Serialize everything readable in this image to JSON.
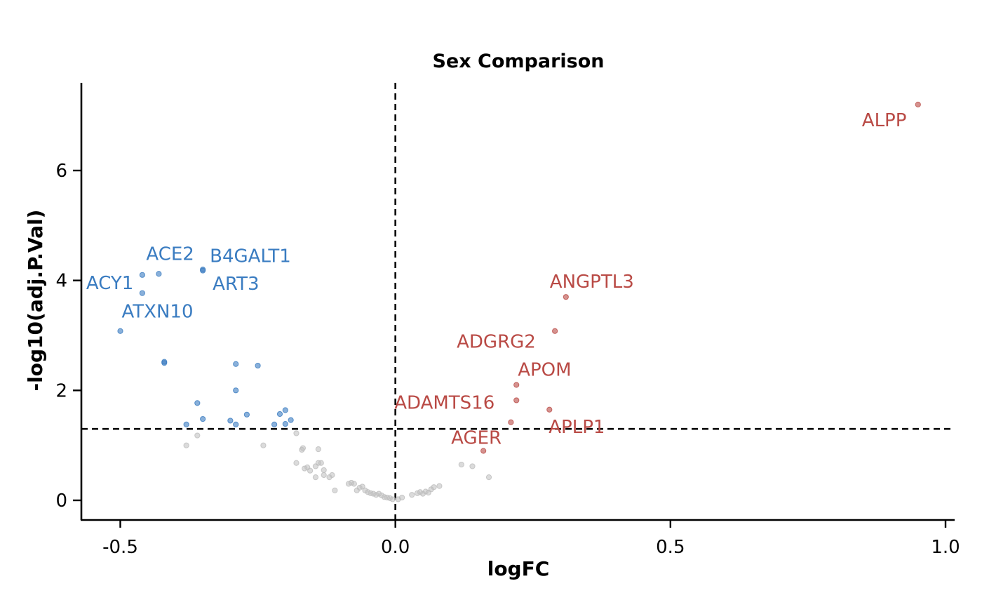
{
  "chart_data": {
    "type": "scatter",
    "title": "Sex Comparison",
    "xlabel": "logFC",
    "ylabel": "-log10(adj.P.Val)",
    "xlim": [
      -0.57,
      1.02
    ],
    "ylim": [
      -0.35,
      7.6
    ],
    "x_ticks": [
      "-0.5",
      "0.0",
      "0.5",
      "1.0"
    ],
    "y_ticks": [
      "0",
      "2",
      "4",
      "6"
    ],
    "thresholds": {
      "logfc_vline": 0.0,
      "pval_hline": 1.3
    },
    "colors": {
      "up": "#b94a45",
      "down": "#3a7cc1",
      "ns": "#bdbdbd"
    },
    "series": [
      {
        "group": "up",
        "points": [
          [
            0.95,
            7.2
          ],
          [
            0.31,
            3.7
          ],
          [
            0.29,
            3.08
          ],
          [
            0.22,
            2.1
          ],
          [
            0.22,
            1.82
          ],
          [
            0.28,
            1.65
          ],
          [
            0.21,
            1.42
          ],
          [
            0.16,
            0.9
          ]
        ]
      },
      {
        "group": "down",
        "points": [
          [
            -0.35,
            4.2
          ],
          [
            -0.35,
            4.18
          ],
          [
            -0.43,
            4.12
          ],
          [
            -0.46,
            4.1
          ],
          [
            -0.46,
            3.77
          ],
          [
            -0.5,
            3.08
          ],
          [
            -0.42,
            2.5
          ],
          [
            -0.42,
            2.52
          ],
          [
            -0.29,
            2.48
          ],
          [
            -0.25,
            2.45
          ],
          [
            -0.29,
            2.0
          ],
          [
            -0.36,
            1.77
          ],
          [
            -0.38,
            1.38
          ],
          [
            -0.35,
            1.48
          ],
          [
            -0.3,
            1.45
          ],
          [
            -0.29,
            1.38
          ],
          [
            -0.27,
            1.56
          ],
          [
            -0.22,
            1.38
          ],
          [
            -0.21,
            1.57
          ],
          [
            -0.2,
            1.64
          ],
          [
            -0.2,
            1.39
          ],
          [
            -0.19,
            1.46
          ]
        ]
      },
      {
        "group": "ns",
        "points": [
          [
            -0.38,
            1.0
          ],
          [
            -0.36,
            1.18
          ],
          [
            -0.24,
            1.0
          ],
          [
            -0.18,
            1.22
          ],
          [
            -0.17,
            0.92
          ],
          [
            -0.168,
            0.95
          ],
          [
            -0.14,
            0.93
          ],
          [
            -0.18,
            0.68
          ],
          [
            -0.165,
            0.58
          ],
          [
            -0.16,
            0.6
          ],
          [
            -0.155,
            0.54
          ],
          [
            -0.145,
            0.62
          ],
          [
            -0.14,
            0.68
          ],
          [
            -0.135,
            0.68
          ],
          [
            -0.13,
            0.55
          ],
          [
            -0.13,
            0.46
          ],
          [
            -0.145,
            0.42
          ],
          [
            -0.12,
            0.42
          ],
          [
            -0.115,
            0.46
          ],
          [
            -0.11,
            0.18
          ],
          [
            -0.085,
            0.3
          ],
          [
            -0.08,
            0.32
          ],
          [
            -0.075,
            0.3
          ],
          [
            -0.07,
            0.18
          ],
          [
            -0.065,
            0.23
          ],
          [
            -0.06,
            0.25
          ],
          [
            -0.055,
            0.18
          ],
          [
            -0.05,
            0.15
          ],
          [
            -0.045,
            0.13
          ],
          [
            -0.04,
            0.12
          ],
          [
            -0.035,
            0.1
          ],
          [
            -0.03,
            0.12
          ],
          [
            -0.025,
            0.09
          ],
          [
            -0.02,
            0.06
          ],
          [
            -0.015,
            0.05
          ],
          [
            -0.01,
            0.04
          ],
          [
            -0.005,
            0.02
          ],
          [
            0.005,
            0.02
          ],
          [
            0.012,
            0.05
          ],
          [
            0.03,
            0.1
          ],
          [
            0.04,
            0.13
          ],
          [
            0.045,
            0.15
          ],
          [
            0.05,
            0.12
          ],
          [
            0.055,
            0.16
          ],
          [
            0.06,
            0.14
          ],
          [
            0.065,
            0.2
          ],
          [
            0.07,
            0.24
          ],
          [
            0.08,
            0.26
          ],
          [
            0.12,
            0.65
          ],
          [
            0.14,
            0.62
          ],
          [
            0.17,
            0.42
          ]
        ]
      }
    ],
    "labels": [
      {
        "text": "ALPP",
        "group": "up",
        "x": 0.95,
        "y": 7.2,
        "dx": -80,
        "dy": 31
      },
      {
        "text": "ANGPTL3",
        "group": "up",
        "x": 0.31,
        "y": 3.7,
        "dx": -23,
        "dy": -13
      },
      {
        "text": "ADGRG2",
        "group": "up",
        "x": 0.29,
        "y": 3.08,
        "dx": -140,
        "dy": 24
      },
      {
        "text": "APOM",
        "group": "up",
        "x": 0.22,
        "y": 2.1,
        "dx": 2,
        "dy": -13
      },
      {
        "text": "ADAMTS16",
        "group": "up",
        "x": 0.22,
        "y": 1.82,
        "dx": -174,
        "dy": 12
      },
      {
        "text": "APLP1",
        "group": "up",
        "x": 0.28,
        "y": 1.65,
        "dx": -1,
        "dy": 33
      },
      {
        "text": "AGER",
        "group": "up",
        "x": 0.16,
        "y": 0.9,
        "dx": -46,
        "dy": -10
      },
      {
        "text": "ACE2",
        "group": "down",
        "x": -0.43,
        "y": 4.12,
        "dx": -18,
        "dy": -20
      },
      {
        "text": "B4GALT1",
        "group": "down",
        "x": -0.35,
        "y": 4.18,
        "dx": 10,
        "dy": -12
      },
      {
        "text": "ACY1",
        "group": "down",
        "x": -0.46,
        "y": 4.1,
        "dx": -80,
        "dy": 20
      },
      {
        "text": "ART3",
        "group": "down",
        "x": -0.35,
        "y": 4.2,
        "dx": 14,
        "dy": 29
      },
      {
        "text": "ATXN10",
        "group": "down",
        "x": -0.5,
        "y": 3.08,
        "dx": 2,
        "dy": -19
      }
    ]
  }
}
